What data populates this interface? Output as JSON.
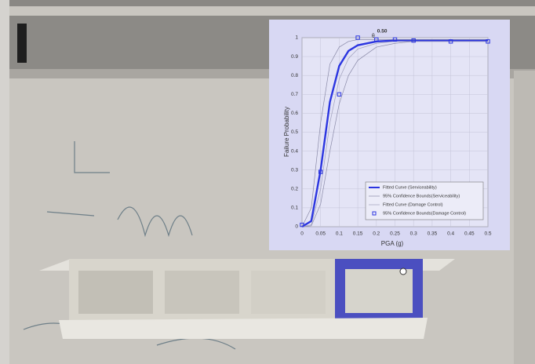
{
  "chart_data": {
    "type": "line",
    "annotation": {
      "text": "θ",
      "sup": "0.50",
      "x": 0.2
    },
    "x_label": "PGA (g)",
    "y_label": "Failure Probability",
    "xlim": [
      0,
      0.5
    ],
    "ylim": [
      0,
      1
    ],
    "xticks": [
      0,
      0.05,
      0.1,
      0.15,
      0.2,
      0.25,
      0.3,
      0.35,
      0.4,
      0.45,
      0.5
    ],
    "yticks": [
      0,
      0.1,
      0.2,
      0.3,
      0.4,
      0.5,
      0.6,
      0.7,
      0.8,
      0.9,
      1
    ],
    "grid": true,
    "legend": "lower-right",
    "series": [
      {
        "name": "Fitted Curve (Serviceability)",
        "color": "#2b35e0",
        "style": "thick",
        "x": [
          0,
          0.025,
          0.05,
          0.075,
          0.1,
          0.125,
          0.15,
          0.2,
          0.25,
          0.3,
          0.35,
          0.4,
          0.45,
          0.5
        ],
        "values": [
          0,
          0.03,
          0.3,
          0.66,
          0.85,
          0.93,
          0.96,
          0.98,
          0.985,
          0.985,
          0.985,
          0.985,
          0.985,
          0.985
        ]
      },
      {
        "name": "95% Confidence Bounds(Serviceability)",
        "color": "#8a8aa8",
        "style": "thin",
        "x": [
          0,
          0.025,
          0.05,
          0.075,
          0.1,
          0.125,
          0.15,
          0.2,
          0.25,
          0.3,
          0.35,
          0.4,
          0.45,
          0.5
        ],
        "values": [
          0,
          0.1,
          0.55,
          0.86,
          0.95,
          0.98,
          0.99,
          0.99,
          0.99,
          0.99,
          0.99,
          0.99,
          0.99,
          0.99
        ],
        "upper": [
          0,
          0.005,
          0.12,
          0.4,
          0.65,
          0.8,
          0.88,
          0.95,
          0.97,
          0.98,
          0.98,
          0.98,
          0.98,
          0.98
        ]
      },
      {
        "name": "Fitted Curve (Damage Control)",
        "color": "#a0a0bc",
        "style": "thin",
        "x": [
          0,
          0.025,
          0.05,
          0.075,
          0.1,
          0.125,
          0.15,
          0.2,
          0.25,
          0.3,
          0.35,
          0.4,
          0.45,
          0.5
        ],
        "values": [
          0,
          0.01,
          0.2,
          0.55,
          0.78,
          0.89,
          0.94,
          0.97,
          0.98,
          0.98,
          0.98,
          0.98,
          0.98,
          0.98
        ]
      },
      {
        "name": "95% Confidence Bounds(Damage Control)",
        "color": "#2b35e0",
        "style": "square",
        "x": [
          0,
          0.05,
          0.1,
          0.15,
          0.2,
          0.25,
          0.3,
          0.4,
          0.5
        ],
        "values": [
          0.01,
          0.29,
          0.7,
          1,
          0.99,
          0.99,
          0.985,
          0.98,
          0.98
        ]
      }
    ]
  }
}
